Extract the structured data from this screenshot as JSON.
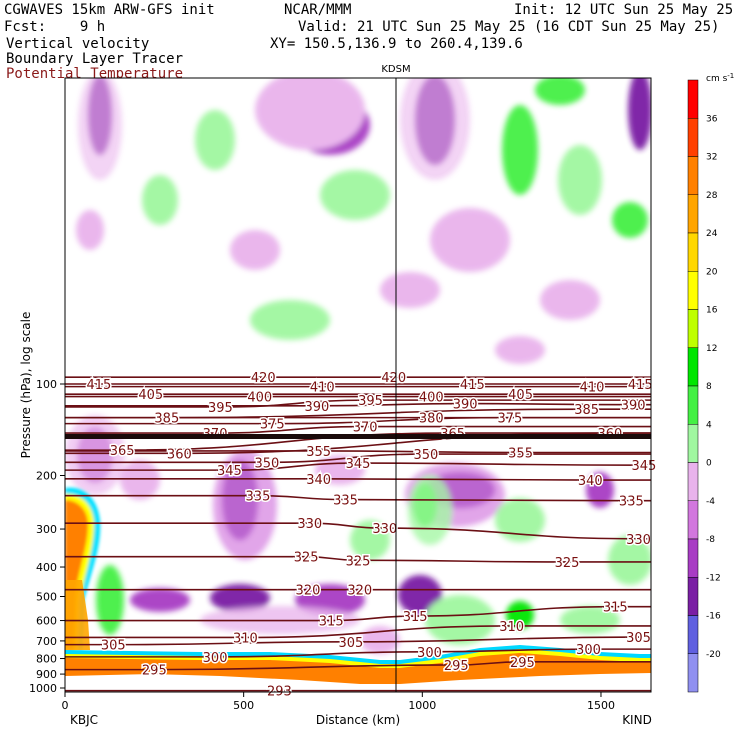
{
  "header": {
    "model_line": "CGWAVES 15km ARW-GFS init",
    "org": "NCAR/MMM",
    "init": "Init: 12 UTC Sun 25 May 25",
    "fcst": "Fcst:    9 h",
    "valid": "Valid: 21 UTC Sun 25 May 25 (16 CDT Sun 25 May 25)",
    "field1": "Vertical velocity",
    "xy": "XY= 150.5,136.9 to 260.4,139.6",
    "field2": "Boundary Layer Tracer",
    "field3": "Potential Temperature"
  },
  "colors": {
    "theta_line": "#6b0f14",
    "field3_text": "#8b1a1a",
    "positive": "#44c444",
    "negative": "#8a2ab8"
  },
  "chart_data": {
    "type": "heatmap",
    "title": "KDSM",
    "xlabel": "Distance (km)",
    "ylabel": "Pressure (hPa), log scale",
    "x_ticks": [
      0,
      500,
      1000,
      1500
    ],
    "xlim": [
      0,
      1640
    ],
    "x_endpoints": {
      "left": "KBJC",
      "right": "KIND"
    },
    "y_ticks": [
      100,
      200,
      300,
      400,
      500,
      600,
      700,
      800,
      900,
      1000
    ],
    "y_scale": "log",
    "colorbar": {
      "unit": "cm s",
      "unit_exp": "-1",
      "tick_labels": [
        36,
        32,
        28,
        24,
        20,
        16,
        12,
        8,
        4,
        0,
        -4,
        -8,
        -12,
        -16,
        -20
      ],
      "bins": [
        {
          "value": 38,
          "color": "#ff0000"
        },
        {
          "value": 34,
          "color": "#ff4000"
        },
        {
          "value": 30,
          "color": "#ff8000"
        },
        {
          "value": 26,
          "color": "#ffa500"
        },
        {
          "value": 22,
          "color": "#ffd700"
        },
        {
          "value": 18,
          "color": "#ffff00"
        },
        {
          "value": 14,
          "color": "#bfff00"
        },
        {
          "value": 10,
          "color": "#00e600"
        },
        {
          "value": 6,
          "color": "#44f044"
        },
        {
          "value": 2,
          "color": "#a0f7a0"
        },
        {
          "value": -2,
          "color": "#e9b3ec"
        },
        {
          "value": -6,
          "color": "#d277de"
        },
        {
          "value": -10,
          "color": "#a83cc4"
        },
        {
          "value": -14,
          "color": "#7a1fa4"
        },
        {
          "value": -18,
          "color": "#6060e0"
        },
        {
          "value": -22,
          "color": "#9090f0"
        }
      ]
    },
    "theta_labels": [
      {
        "text": "420",
        "x": 555,
        "p": 95
      },
      {
        "text": "420",
        "x": 920,
        "p": 95
      },
      {
        "text": "415",
        "x": 95,
        "p": 100
      },
      {
        "text": "415",
        "x": 1140,
        "p": 100
      },
      {
        "text": "415",
        "x": 1610,
        "p": 100
      },
      {
        "text": "410",
        "x": 720,
        "p": 102
      },
      {
        "text": "410",
        "x": 1475,
        "p": 102
      },
      {
        "text": "405",
        "x": 240,
        "p": 108
      },
      {
        "text": "405",
        "x": 1275,
        "p": 108
      },
      {
        "text": "400",
        "x": 545,
        "p": 110
      },
      {
        "text": "400",
        "x": 1025,
        "p": 110
      },
      {
        "text": "395",
        "x": 435,
        "p": 119
      },
      {
        "text": "395",
        "x": 855,
        "p": 113
      },
      {
        "text": "390",
        "x": 705,
        "p": 118
      },
      {
        "text": "390",
        "x": 1120,
        "p": 116
      },
      {
        "text": "390",
        "x": 1590,
        "p": 117
      },
      {
        "text": "385",
        "x": 285,
        "p": 129
      },
      {
        "text": "385",
        "x": 1460,
        "p": 121
      },
      {
        "text": "380",
        "x": 1025,
        "p": 129
      },
      {
        "text": "375",
        "x": 580,
        "p": 135
      },
      {
        "text": "375",
        "x": 1245,
        "p": 129
      },
      {
        "text": "370",
        "x": 420,
        "p": 145
      },
      {
        "text": "370",
        "x": 840,
        "p": 138
      },
      {
        "text": "365",
        "x": 160,
        "p": 165
      },
      {
        "text": "365",
        "x": 1085,
        "p": 145
      },
      {
        "text": "360",
        "x": 320,
        "p": 169
      },
      {
        "text": "360",
        "x": 1525,
        "p": 145
      },
      {
        "text": "355",
        "x": 710,
        "p": 166
      },
      {
        "text": "355",
        "x": 1275,
        "p": 168
      },
      {
        "text": "350",
        "x": 565,
        "p": 181
      },
      {
        "text": "350",
        "x": 1010,
        "p": 170
      },
      {
        "text": "345",
        "x": 460,
        "p": 192
      },
      {
        "text": "345",
        "x": 820,
        "p": 182
      },
      {
        "text": "345",
        "x": 1620,
        "p": 185
      },
      {
        "text": "340",
        "x": 710,
        "p": 205
      },
      {
        "text": "340",
        "x": 1470,
        "p": 207
      },
      {
        "text": "335",
        "x": 540,
        "p": 233
      },
      {
        "text": "335",
        "x": 785,
        "p": 240
      },
      {
        "text": "335",
        "x": 1585,
        "p": 242
      },
      {
        "text": "330",
        "x": 685,
        "p": 287
      },
      {
        "text": "330",
        "x": 895,
        "p": 298
      },
      {
        "text": "330",
        "x": 1605,
        "p": 323
      },
      {
        "text": "325",
        "x": 675,
        "p": 370
      },
      {
        "text": "325",
        "x": 820,
        "p": 380
      },
      {
        "text": "325",
        "x": 1405,
        "p": 385
      },
      {
        "text": "320",
        "x": 680,
        "p": 475
      },
      {
        "text": "320",
        "x": 825,
        "p": 475
      },
      {
        "text": "315",
        "x": 745,
        "p": 600
      },
      {
        "text": "315",
        "x": 980,
        "p": 580
      },
      {
        "text": "315",
        "x": 1540,
        "p": 540
      },
      {
        "text": "310",
        "x": 505,
        "p": 682
      },
      {
        "text": "310",
        "x": 1250,
        "p": 625
      },
      {
        "text": "305",
        "x": 135,
        "p": 720
      },
      {
        "text": "305",
        "x": 800,
        "p": 705
      },
      {
        "text": "305",
        "x": 1605,
        "p": 680
      },
      {
        "text": "300",
        "x": 420,
        "p": 790
      },
      {
        "text": "300",
        "x": 1020,
        "p": 760
      },
      {
        "text": "300",
        "x": 1465,
        "p": 745
      },
      {
        "text": "295",
        "x": 250,
        "p": 870
      },
      {
        "text": "295",
        "x": 1095,
        "p": 840
      },
      {
        "text": "295",
        "x": 1280,
        "p": 820
      },
      {
        "text": "293",
        "x": 600,
        "p": 1020
      }
    ]
  }
}
